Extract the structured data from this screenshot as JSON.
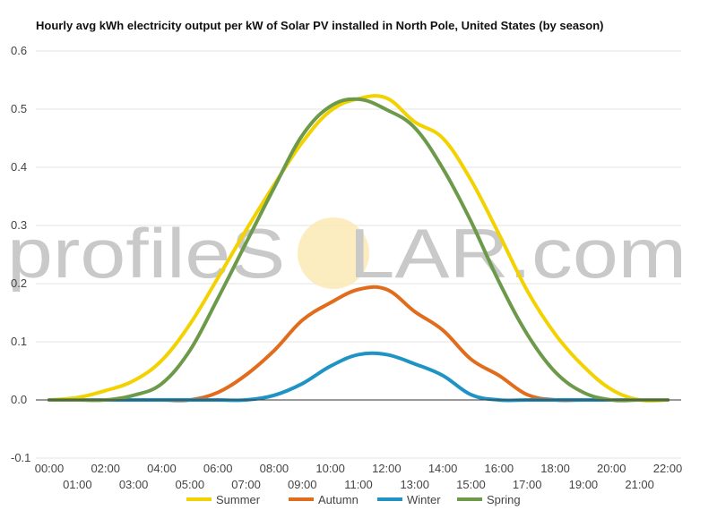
{
  "chart_data": {
    "type": "line",
    "title": "Hourly avg kWh electricity output per kW of Solar PV installed in North Pole, United States (by season)",
    "xlabel": "",
    "ylabel": "",
    "x": [
      "00:00",
      "01:00",
      "02:00",
      "03:00",
      "04:00",
      "05:00",
      "06:00",
      "07:00",
      "08:00",
      "09:00",
      "10:00",
      "11:00",
      "12:00",
      "13:00",
      "14:00",
      "15:00",
      "16:00",
      "17:00",
      "18:00",
      "19:00",
      "20:00",
      "21:00",
      "22:00"
    ],
    "ylim": [
      -0.1,
      0.6
    ],
    "yticks": [
      "0.6",
      "0.5",
      "0.4",
      "0.3",
      "0.2",
      "0.1",
      "0.0",
      "-0.1"
    ],
    "grid": true,
    "legend": "bottom",
    "series": [
      {
        "name": "Summer",
        "color": "#f2d200",
        "values": [
          0,
          0.004,
          0.016,
          0.033,
          0.068,
          0.13,
          0.21,
          0.292,
          0.37,
          0.443,
          0.497,
          0.518,
          0.519,
          0.478,
          0.45,
          0.378,
          0.285,
          0.188,
          0.113,
          0.058,
          0.018,
          0,
          0
        ]
      },
      {
        "name": "Autumn",
        "color": "#e06c1c",
        "values": [
          0,
          0,
          0,
          0,
          0,
          0,
          0.013,
          0.043,
          0.085,
          0.137,
          0.167,
          0.19,
          0.19,
          0.152,
          0.12,
          0.07,
          0.042,
          0.009,
          0,
          0,
          0,
          0,
          0
        ]
      },
      {
        "name": "Winter",
        "color": "#1f94c4",
        "values": [
          0,
          0,
          0,
          0,
          0,
          0,
          0,
          0,
          0.008,
          0.028,
          0.058,
          0.078,
          0.078,
          0.062,
          0.042,
          0.009,
          0,
          0,
          0,
          0,
          0,
          0,
          0
        ]
      },
      {
        "name": "Spring",
        "color": "#6d9a4a",
        "values": [
          0,
          0,
          0,
          0.008,
          0.028,
          0.085,
          0.175,
          0.27,
          0.365,
          0.455,
          0.505,
          0.517,
          0.499,
          0.468,
          0.398,
          0.307,
          0.203,
          0.113,
          0.048,
          0.013,
          0,
          0,
          0
        ]
      }
    ]
  },
  "watermark": {
    "left": "profile",
    "s": "S",
    "right": "LAR.com"
  }
}
